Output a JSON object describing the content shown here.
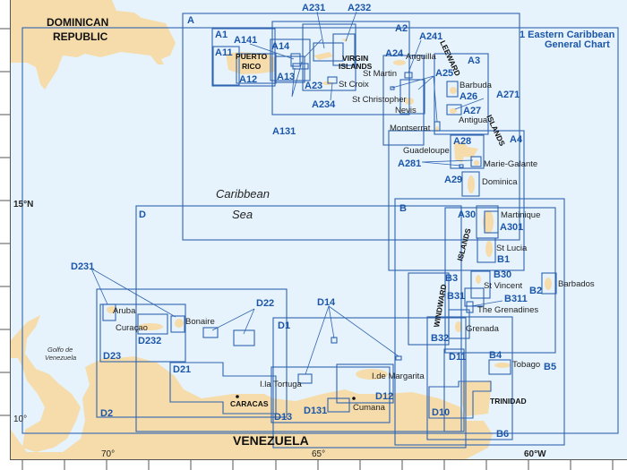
{
  "colors": {
    "sea": "#e6f3fc",
    "land": "#f5dcaa",
    "chart_outline": "#2f63b0",
    "chart_label": "#1c56a8"
  },
  "general_chart": {
    "line1": "1 Eastern Caribbean",
    "line2": "General Chart"
  },
  "graticule": {
    "lat15": "15°N",
    "lat10": "10°",
    "lon70": "70°",
    "lon65": "65°",
    "lon60": "60°W"
  },
  "sea_names": {
    "caribbean": "Caribbean",
    "sea": "Sea",
    "gulf1": "Golfo de",
    "gulf2": "Venezuela"
  },
  "countries": {
    "dr1": "DOMINICAN",
    "dr2": "REPUBLIC",
    "venezuela": "VENEZUELA",
    "trinidad": "TRINIDAD",
    "caracas": "CARACAS",
    "pr1": "PUERTO",
    "pr2": "RICO",
    "vi1": "VIRGIN",
    "vi2": "ISLANDS"
  },
  "island_groups": {
    "leeward": "LEEWARD",
    "islands_a": "ISLANDS",
    "islands_b": "ISLANDS",
    "windward": "WINDWARD"
  },
  "places": {
    "anguilla": "Anguilla",
    "st_martin": "St Martin",
    "st_croix": "St Croix",
    "st_christopher": "St Christopher",
    "nevis": "Nevis",
    "barbuda": "Barbuda",
    "antigua": "Antigua",
    "montserrat": "Montserrat",
    "guadeloupe": "Guadeloupe",
    "marie_galante": "Marie-Galante",
    "dominica": "Dominica",
    "martinique": "Martinique",
    "st_lucia": "St Lucia",
    "st_vincent": "St Vincent",
    "barbados": "Barbados",
    "grenadines": "The Grenadines",
    "grenada": "Grenada",
    "tobago": "Tobago",
    "margarita": "I.de Margarita",
    "cumana": "Cumana",
    "tortuga": "I.la Tortuga",
    "aruba": "Aruba",
    "curacao": "Curaçao",
    "bonaire": "Bonaire"
  },
  "charts": {
    "A": "A",
    "A1": "A1",
    "A11": "A11",
    "A12": "A12",
    "A13": "A13",
    "A14": "A14",
    "A141": "A141",
    "A131": "A131",
    "A2": "A2",
    "A23": "A23",
    "A231": "A231",
    "A232": "A232",
    "A234": "A234",
    "A24": "A24",
    "A241": "A241",
    "A25": "A25",
    "A26": "A26",
    "A27": "A27",
    "A271": "A271",
    "A3": "A3",
    "A4": "A4",
    "A28": "A28",
    "A281": "A281",
    "A29": "A29",
    "A30": "A30",
    "A301": "A301",
    "B": "B",
    "B1": "B1",
    "B2": "B2",
    "B3": "B3",
    "B30": "B30",
    "B31": "B31",
    "B311": "B311",
    "B32": "B32",
    "B4": "B4",
    "B5": "B5",
    "B6": "B6",
    "D": "D",
    "D1": "D1",
    "D2": "D2",
    "D10": "D10",
    "D11": "D11",
    "D12": "D12",
    "D13": "D13",
    "D131": "D131",
    "D14": "D14",
    "D21": "D21",
    "D22": "D22",
    "D23": "D23",
    "D231": "D231",
    "D232": "D232"
  }
}
